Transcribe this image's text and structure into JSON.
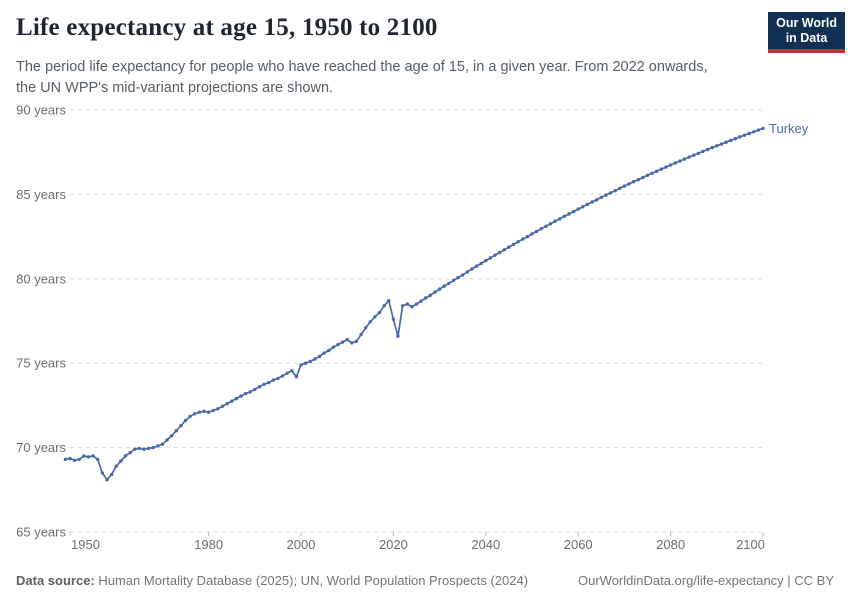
{
  "header": {
    "title": "Life expectancy at age 15, 1950 to 2100",
    "subtitle": [
      "The period life expectancy for people who have reached the age of 15, in a given year. From 2022 onwards,",
      "the UN WPP's mid-variant projections are shown."
    ],
    "logo": {
      "line1": "Our World",
      "line2": "in Data",
      "bg_color": "#122f54",
      "stripe_color": "#c5313c"
    }
  },
  "chart_data": {
    "type": "line",
    "title": "Life expectancy at age 15, 1950 to 2100",
    "xlabel": "",
    "ylabel": "",
    "xlim": [
      1949,
      2100
    ],
    "ylim": [
      65,
      90
    ],
    "grid": "horizontal-dashed",
    "x_ticks": [
      1950,
      1980,
      2000,
      2020,
      2040,
      2060,
      2080,
      2100
    ],
    "y_ticks": [
      65,
      70,
      75,
      80,
      85,
      90
    ],
    "y_tick_labels": [
      "65 years",
      "70 years",
      "75 years",
      "80 years",
      "85 years",
      "90 years"
    ],
    "projection_note": "From 2022 onwards the UN WPP's mid-variant projections are shown",
    "series": [
      {
        "name": "Turkey",
        "color": "#4a69a8",
        "points": [
          [
            1949,
            69.3
          ],
          [
            1950,
            69.35
          ],
          [
            1951,
            69.25
          ],
          [
            1952,
            69.3
          ],
          [
            1953,
            69.5
          ],
          [
            1954,
            69.45
          ],
          [
            1955,
            69.5
          ],
          [
            1956,
            69.3
          ],
          [
            1957,
            68.5
          ],
          [
            1958,
            68.1
          ],
          [
            1959,
            68.4
          ],
          [
            1960,
            68.9
          ],
          [
            1961,
            69.2
          ],
          [
            1962,
            69.5
          ],
          [
            1963,
            69.7
          ],
          [
            1964,
            69.9
          ],
          [
            1965,
            69.95
          ],
          [
            1966,
            69.9
          ],
          [
            1967,
            69.95
          ],
          [
            1968,
            70
          ],
          [
            1969,
            70.1
          ],
          [
            1970,
            70.2
          ],
          [
            1971,
            70.45
          ],
          [
            1972,
            70.7
          ],
          [
            1973,
            71
          ],
          [
            1974,
            71.3
          ],
          [
            1975,
            71.6
          ],
          [
            1976,
            71.85
          ],
          [
            1977,
            72
          ],
          [
            1978,
            72.1
          ],
          [
            1979,
            72.15
          ],
          [
            1980,
            72.1
          ],
          [
            1981,
            72.2
          ],
          [
            1982,
            72.3
          ],
          [
            1983,
            72.45
          ],
          [
            1984,
            72.6
          ],
          [
            1985,
            72.75
          ],
          [
            1986,
            72.9
          ],
          [
            1987,
            73.05
          ],
          [
            1988,
            73.2
          ],
          [
            1989,
            73.3
          ],
          [
            1990,
            73.45
          ],
          [
            1991,
            73.6
          ],
          [
            1992,
            73.75
          ],
          [
            1993,
            73.85
          ],
          [
            1994,
            74
          ],
          [
            1995,
            74.1
          ],
          [
            1996,
            74.25
          ],
          [
            1997,
            74.4
          ],
          [
            1998,
            74.55
          ],
          [
            1999,
            74.2
          ],
          [
            2000,
            74.9
          ],
          [
            2001,
            75
          ],
          [
            2002,
            75.1
          ],
          [
            2003,
            75.25
          ],
          [
            2004,
            75.4
          ],
          [
            2005,
            75.6
          ],
          [
            2006,
            75.75
          ],
          [
            2007,
            75.95
          ],
          [
            2008,
            76.1
          ],
          [
            2009,
            76.25
          ],
          [
            2010,
            76.4
          ],
          [
            2011,
            76.2
          ],
          [
            2012,
            76.3
          ],
          [
            2013,
            76.7
          ],
          [
            2014,
            77.1
          ],
          [
            2015,
            77.45
          ],
          [
            2016,
            77.75
          ],
          [
            2017,
            78
          ],
          [
            2018,
            78.4
          ],
          [
            2019,
            78.7
          ],
          [
            2020,
            77.6
          ],
          [
            2021,
            76.6
          ],
          [
            2022,
            78.4
          ],
          [
            2023,
            78.5
          ],
          [
            2024,
            78.35
          ],
          [
            2025,
            78.5
          ],
          [
            2026,
            78.68
          ],
          [
            2027,
            78.86
          ],
          [
            2028,
            79.03
          ],
          [
            2029,
            79.21
          ],
          [
            2030,
            79.39
          ],
          [
            2031,
            79.56
          ],
          [
            2032,
            79.73
          ],
          [
            2033,
            79.9
          ],
          [
            2034,
            80.07
          ],
          [
            2035,
            80.23
          ],
          [
            2036,
            80.41
          ],
          [
            2037,
            80.58
          ],
          [
            2038,
            80.75
          ],
          [
            2039,
            80.91
          ],
          [
            2040,
            81.08
          ],
          [
            2041,
            81.24
          ],
          [
            2042,
            81.4
          ],
          [
            2043,
            81.56
          ],
          [
            2044,
            81.72
          ],
          [
            2045,
            81.88
          ],
          [
            2046,
            82.04
          ],
          [
            2047,
            82.19
          ],
          [
            2048,
            82.35
          ],
          [
            2049,
            82.5
          ],
          [
            2050,
            82.66
          ],
          [
            2051,
            82.81
          ],
          [
            2052,
            82.96
          ],
          [
            2053,
            83.11
          ],
          [
            2054,
            83.26
          ],
          [
            2055,
            83.41
          ],
          [
            2056,
            83.55
          ],
          [
            2057,
            83.7
          ],
          [
            2058,
            83.84
          ],
          [
            2059,
            83.98
          ],
          [
            2060,
            84.13
          ],
          [
            2061,
            84.27
          ],
          [
            2062,
            84.41
          ],
          [
            2063,
            84.55
          ],
          [
            2064,
            84.68
          ],
          [
            2065,
            84.82
          ],
          [
            2066,
            84.96
          ],
          [
            2067,
            85.09
          ],
          [
            2068,
            85.22
          ],
          [
            2069,
            85.36
          ],
          [
            2070,
            85.49
          ],
          [
            2071,
            85.62
          ],
          [
            2072,
            85.75
          ],
          [
            2073,
            85.87
          ],
          [
            2074,
            86
          ],
          [
            2075,
            86.13
          ],
          [
            2076,
            86.25
          ],
          [
            2077,
            86.37
          ],
          [
            2078,
            86.5
          ],
          [
            2079,
            86.62
          ],
          [
            2080,
            86.74
          ],
          [
            2081,
            86.86
          ],
          [
            2082,
            86.97
          ],
          [
            2083,
            87.09
          ],
          [
            2084,
            87.21
          ],
          [
            2085,
            87.32
          ],
          [
            2086,
            87.43
          ],
          [
            2087,
            87.55
          ],
          [
            2088,
            87.66
          ],
          [
            2089,
            87.77
          ],
          [
            2090,
            87.88
          ],
          [
            2091,
            87.98
          ],
          [
            2092,
            88.09
          ],
          [
            2093,
            88.2
          ],
          [
            2094,
            88.3
          ],
          [
            2095,
            88.41
          ],
          [
            2096,
            88.51
          ],
          [
            2097,
            88.61
          ],
          [
            2098,
            88.71
          ],
          [
            2099,
            88.81
          ],
          [
            2100,
            88.91
          ]
        ]
      }
    ]
  },
  "footer": {
    "source_label": "Data source:",
    "source_text": " Human Mortality Database (2025); UN, World Population Prospects (2024)",
    "credit": "OurWorldinData.org/life-expectancy | CC BY"
  }
}
